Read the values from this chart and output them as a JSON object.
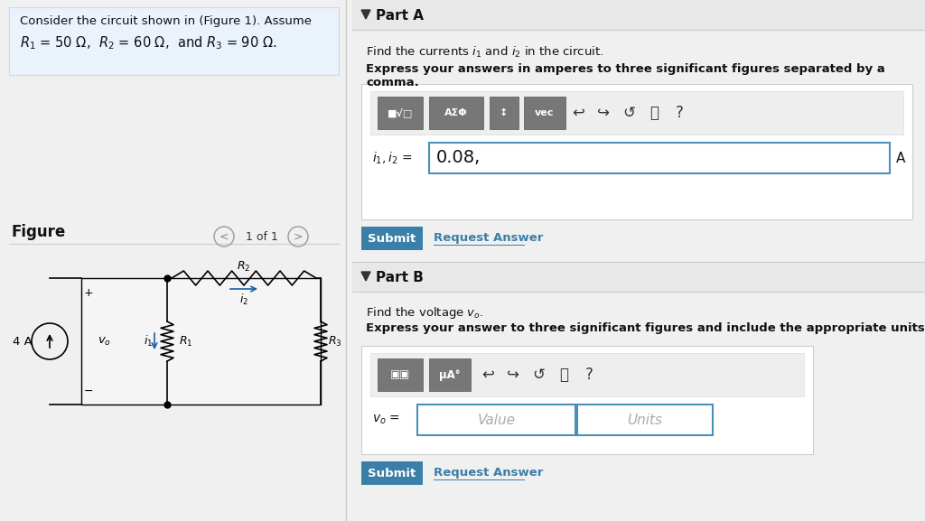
{
  "bg_color": "#f0f0f0",
  "left_bg": "#eaf2fb",
  "left_border": "#c8dced",
  "white": "#ffffff",
  "section_header_bg": "#e8e8e8",
  "input_border": "#4a90b8",
  "submit_color": "#3a7fa8",
  "link_color": "#3a7fa8",
  "gray_toolbar": "#888888",
  "dark_gray": "#555555",
  "divider": "#cccccc",
  "text_black": "#111111",
  "text_gray": "#aaaaaa",
  "part_a_header": "Part A",
  "part_b_header": "Part B",
  "part_a_find": "Find the currents $i_1$ and $i_2$ in the circuit.",
  "part_a_bold": "Express your answers in amperes to three significant figures separated by a comma.",
  "part_b_find": "Find the voltage $v_o$.",
  "part_b_bold": "Express your answer to three significant figures and include the appropriate units.",
  "answer_a": "0.08,",
  "unit_a": "A",
  "submit_text": "Submit",
  "request_text": "Request Answer",
  "value_placeholder": "Value",
  "units_placeholder": "Units",
  "figure_label": "Figure",
  "nav_text": "1 of 1",
  "prob_line1": "Consider the circuit shown in (Figure 1). Assume",
  "prob_line2_normal": "= 50 Ω,",
  "prob_line2b": "= 60 Ω, and",
  "prob_line2c": "= 90 Ω."
}
